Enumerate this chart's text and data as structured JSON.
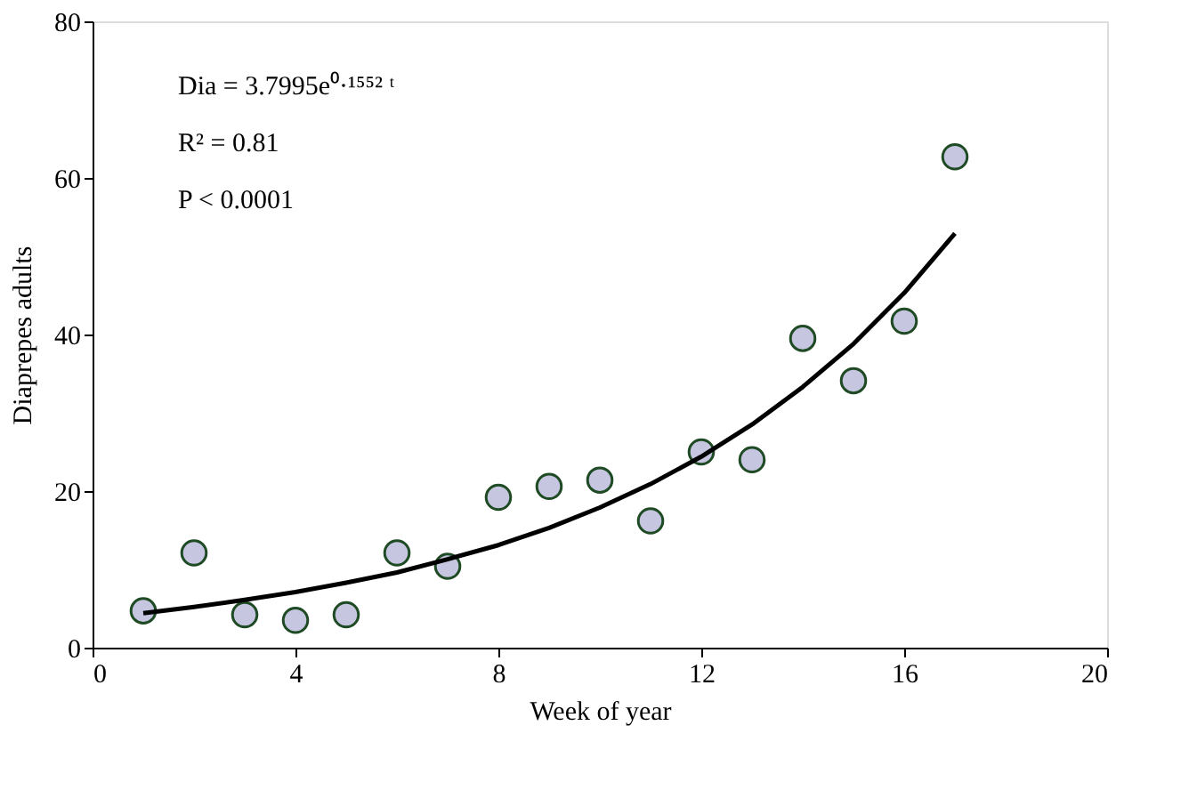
{
  "chart_data": {
    "type": "scatter",
    "xlabel": "Week of year",
    "ylabel": "Diaprepes adults",
    "xlim": [
      0,
      20
    ],
    "xticks": [
      0,
      4,
      8,
      12,
      16,
      20
    ],
    "ylim": [
      0,
      80
    ],
    "yticks": [
      0,
      20,
      40,
      60,
      80
    ],
    "grid": false,
    "marker": "circle",
    "annotations": [
      "Dia = 3.7995e⁰·¹⁵⁵² ᵗ",
      "R² = 0.81",
      "P < 0.0001"
    ],
    "series": [
      {
        "color": "#c6c6e0",
        "x": [
          1,
          2,
          3,
          4,
          5,
          6,
          7,
          8,
          9,
          10,
          11,
          12,
          13,
          14,
          15,
          16,
          17
        ],
        "values": [
          4.7,
          12.1,
          4.2,
          3.5,
          4.2,
          12.1,
          10.4,
          19.2,
          20.6,
          21.4,
          16.2,
          25.0,
          24.0,
          39.5,
          34.1,
          41.7,
          62.7
        ]
      },
      {
        "type": "line",
        "color": "#000000",
        "line_style": "solid",
        "marker": "none",
        "x": [
          1,
          2,
          3,
          4,
          5,
          6,
          7,
          8,
          9,
          10,
          11,
          12,
          13,
          14,
          15,
          16,
          17
        ],
        "values": [
          4.4,
          5.2,
          6.1,
          7.1,
          8.3,
          9.6,
          11.3,
          13.1,
          15.3,
          17.9,
          20.9,
          24.4,
          28.5,
          33.3,
          38.8,
          45.3,
          52.9
        ]
      }
    ]
  }
}
